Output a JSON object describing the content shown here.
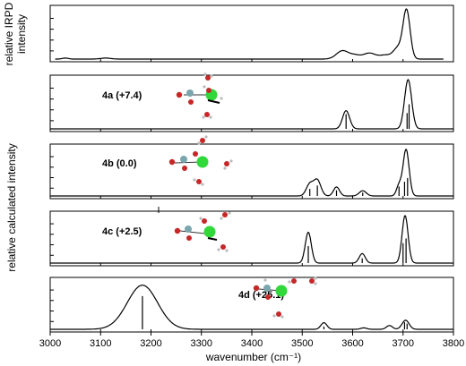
{
  "chart_data": {
    "type": "line",
    "xlabel": "wavenumber (cm⁻¹)",
    "xlim": [
      3000,
      3800
    ],
    "x_ticks": [
      3000,
      3100,
      3200,
      3300,
      3400,
      3500,
      3600,
      3700,
      3800
    ],
    "ylabel_top": "relative IRPD\nintensity",
    "ylabel_calc": "relative calculated intensity",
    "grid": false,
    "panels": [
      {
        "name": "experimental",
        "label": "",
        "peaks": [
          {
            "x": 3030,
            "w": 6,
            "h": 0.02
          },
          {
            "x": 3110,
            "w": 10,
            "h": 0.02
          },
          {
            "x": 3580,
            "w": 12,
            "h": 0.17
          },
          {
            "x": 3605,
            "w": 10,
            "h": 0.07
          },
          {
            "x": 3633,
            "w": 12,
            "h": 0.12
          },
          {
            "x": 3665,
            "w": 12,
            "h": 0.08
          },
          {
            "x": 3690,
            "w": 9,
            "h": 0.22
          },
          {
            "x": 3707,
            "w": 7,
            "h": 0.98
          }
        ],
        "sticks": []
      },
      {
        "name": "4a",
        "label": "4a (+7.4)",
        "peaks": [
          {
            "x": 3587,
            "w": 7,
            "h": 0.37
          },
          {
            "x": 3710,
            "w": 7,
            "h": 1.0
          }
        ],
        "sticks": [
          {
            "x": 3587,
            "h": 0.3
          },
          {
            "x": 3708,
            "h": 0.32
          },
          {
            "x": 3712,
            "h": 0.5
          }
        ]
      },
      {
        "name": "4b",
        "label": "4b (0.0)",
        "peaks": [
          {
            "x": 3515,
            "w": 7,
            "h": 0.25
          },
          {
            "x": 3530,
            "w": 7,
            "h": 0.33
          },
          {
            "x": 3568,
            "w": 6,
            "h": 0.19
          },
          {
            "x": 3620,
            "w": 7,
            "h": 0.11
          },
          {
            "x": 3692,
            "w": 5,
            "h": 0.22
          },
          {
            "x": 3706,
            "w": 6,
            "h": 0.98
          }
        ],
        "sticks": [
          {
            "x": 3515,
            "h": 0.15
          },
          {
            "x": 3530,
            "h": 0.22
          },
          {
            "x": 3568,
            "h": 0.12
          },
          {
            "x": 3620,
            "h": 0.07
          },
          {
            "x": 3692,
            "h": 0.2
          },
          {
            "x": 3703,
            "h": 0.3
          },
          {
            "x": 3709,
            "h": 0.38
          }
        ]
      },
      {
        "name": "4c",
        "label": "4c (+2.5)",
        "peaks": [
          {
            "x": 3512,
            "w": 6,
            "h": 0.65
          },
          {
            "x": 3619,
            "w": 6,
            "h": 0.2
          },
          {
            "x": 3704,
            "w": 6,
            "h": 1.0
          }
        ],
        "sticks": [
          {
            "x": 3512,
            "h": 0.36
          },
          {
            "x": 3619,
            "h": 0.1
          },
          {
            "x": 3700,
            "h": 0.42
          },
          {
            "x": 3706,
            "h": 0.52
          }
        ]
      },
      {
        "name": "4d",
        "label": "4d (+25.1)",
        "peaks": [
          {
            "x": 3183,
            "w": 30,
            "h": 0.93
          },
          {
            "x": 3543,
            "w": 6,
            "h": 0.14
          },
          {
            "x": 3622,
            "w": 6,
            "h": 0.03
          },
          {
            "x": 3673,
            "w": 6,
            "h": 0.08
          },
          {
            "x": 3705,
            "w": 7,
            "h": 0.19
          }
        ],
        "sticks": [
          {
            "x": 3183,
            "h": 0.7
          },
          {
            "x": 3543,
            "h": 0.06
          },
          {
            "x": 3703,
            "h": 0.15
          },
          {
            "x": 3708,
            "h": 0.12
          }
        ]
      }
    ]
  }
}
